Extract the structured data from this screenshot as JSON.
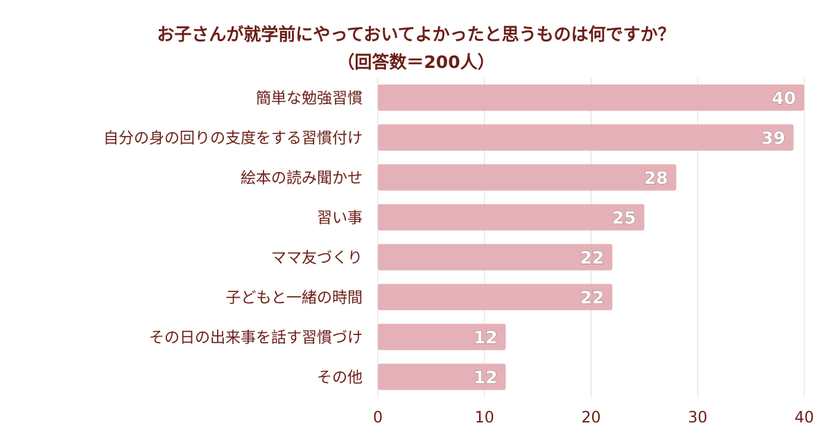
{
  "chart_data": {
    "type": "bar",
    "orientation": "horizontal",
    "title_line1": "お子さんが就学前にやっておいてよかったと思うものは何ですか？",
    "title_line2": "（回答数＝200人）",
    "categories": [
      "簡単な勉強習慣",
      "自分の身の回りの支度をする習慣付け",
      "絵本の読み聞かせ",
      "習い事",
      "ママ友づくり",
      "子どもと一緒の時間",
      "その日の出来事を話す習慣づけ",
      "その他"
    ],
    "values": [
      40,
      39,
      28,
      25,
      22,
      22,
      12,
      12
    ],
    "xlim": [
      0,
      40
    ],
    "xticks": [
      0,
      10,
      20,
      30,
      40
    ],
    "grid": true,
    "legend": "none",
    "bar_color": "#e5b1b8",
    "grid_color": "#e3d9da",
    "text_color": "#6b1f17"
  }
}
